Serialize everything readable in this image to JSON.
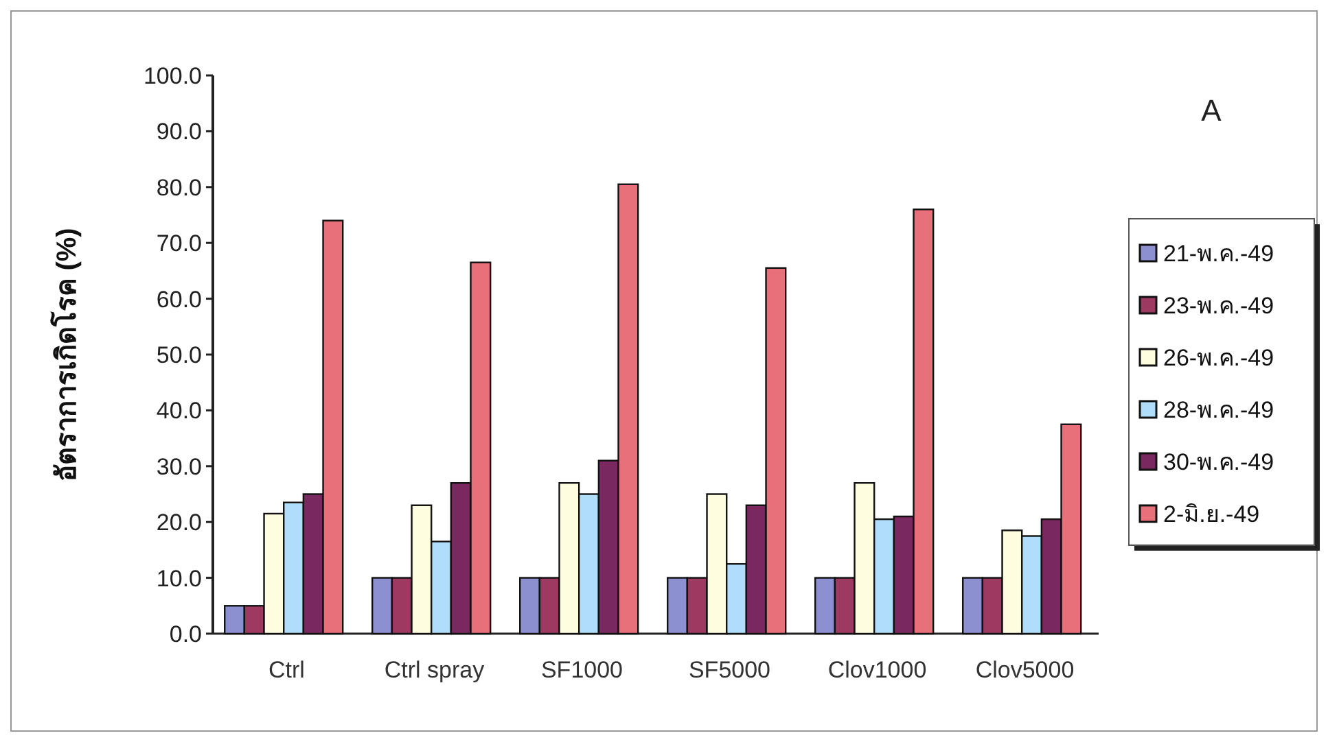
{
  "chart_data": {
    "type": "bar",
    "ylabel": "อัตราการเกิดโรค (%)",
    "annotations": [
      "A"
    ],
    "categories": [
      "Ctrl",
      "Ctrl spray",
      "SF1000",
      "SF5000",
      "Clov1000",
      "Clov5000"
    ],
    "series": [
      {
        "name": "21-พ.ค.-49",
        "color": "#8c8fd0",
        "values": [
          5,
          10,
          10,
          10,
          10,
          10
        ]
      },
      {
        "name": "23-พ.ค.-49",
        "color": "#9e3a62",
        "values": [
          5,
          10,
          10,
          10,
          10,
          10
        ]
      },
      {
        "name": "26-พ.ค.-49",
        "color": "#fffde0",
        "values": [
          21.5,
          23,
          27,
          25,
          27,
          18.5
        ]
      },
      {
        "name": "28-พ.ค.-49",
        "color": "#b0defa",
        "values": [
          23.5,
          16.5,
          25,
          12.5,
          20.5,
          17.5
        ]
      },
      {
        "name": "30-พ.ค.-49",
        "color": "#7a2860",
        "values": [
          25,
          27,
          31,
          23,
          21,
          20.5
        ]
      },
      {
        "name": "2-มิ.ย.-49",
        "color": "#e8707a",
        "values": [
          74,
          66.5,
          80.5,
          65.5,
          76,
          37.5
        ]
      }
    ],
    "ylim": [
      0,
      100
    ],
    "yticks": [
      {
        "value": 0,
        "label": "0.0"
      },
      {
        "value": 10,
        "label": "10.0"
      },
      {
        "value": 20,
        "label": "20.0"
      },
      {
        "value": 30,
        "label": "30.0"
      },
      {
        "value": 40,
        "label": "40.0"
      },
      {
        "value": 50,
        "label": "50.0"
      },
      {
        "value": 60,
        "label": "60.0"
      },
      {
        "value": 70,
        "label": "70.0"
      },
      {
        "value": 80,
        "label": "80.0"
      },
      {
        "value": 90,
        "label": "90.0"
      },
      {
        "value": 100,
        "label": "100.0"
      }
    ],
    "legend": "right"
  }
}
